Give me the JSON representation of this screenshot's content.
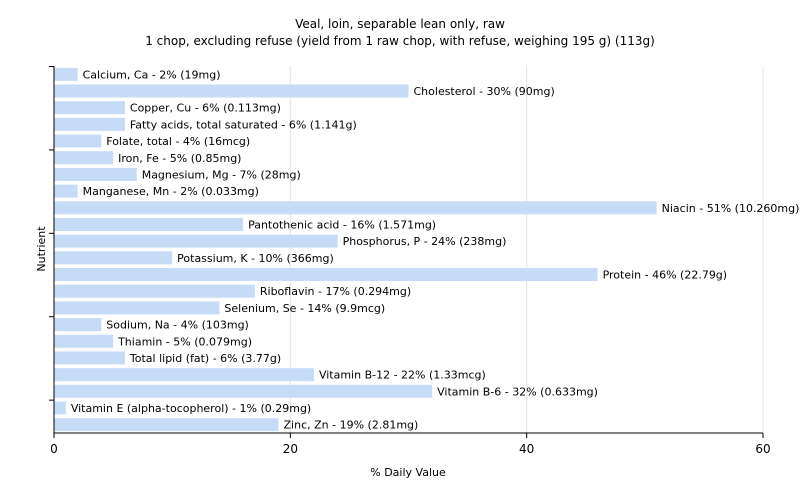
{
  "chart_data": {
    "type": "bar",
    "orientation": "horizontal",
    "title": "Veal, loin, separable lean only, raw",
    "subtitle": "1 chop, excluding refuse (yield from 1 raw chop, with refuse, weighing 195 g) (113g)",
    "xlabel": "% Daily Value",
    "ylabel": "Nutrient",
    "xlim": [
      0,
      60
    ],
    "xticks": [
      "0",
      "20",
      "40",
      "60"
    ],
    "grid": true,
    "bar_color": "#c6dcf6",
    "categories": [
      "Calcium, Ca - 2% (19mg)",
      "Cholesterol - 30% (90mg)",
      "Copper, Cu - 6% (0.113mg)",
      "Fatty acids, total saturated - 6% (1.141g)",
      "Folate, total - 4% (16mcg)",
      "Iron, Fe - 5% (0.85mg)",
      "Magnesium, Mg - 7% (28mg)",
      "Manganese, Mn - 2% (0.033mg)",
      "Niacin - 51% (10.260mg)",
      "Pantothenic acid - 16% (1.571mg)",
      "Phosphorus, P - 24% (238mg)",
      "Potassium, K - 10% (366mg)",
      "Protein - 46% (22.79g)",
      "Riboflavin - 17% (0.294mg)",
      "Selenium, Se - 14% (9.9mcg)",
      "Sodium, Na - 4% (103mg)",
      "Thiamin - 5% (0.079mg)",
      "Total lipid (fat) - 6% (3.77g)",
      "Vitamin B-12 - 22% (1.33mcg)",
      "Vitamin B-6 - 32% (0.633mg)",
      "Vitamin E (alpha-tocopherol) - 1% (0.29mg)",
      "Zinc, Zn - 19% (2.81mg)"
    ],
    "values": [
      2,
      30,
      6,
      6,
      4,
      5,
      7,
      2,
      51,
      16,
      24,
      10,
      46,
      17,
      14,
      4,
      5,
      6,
      22,
      32,
      1,
      19
    ]
  }
}
